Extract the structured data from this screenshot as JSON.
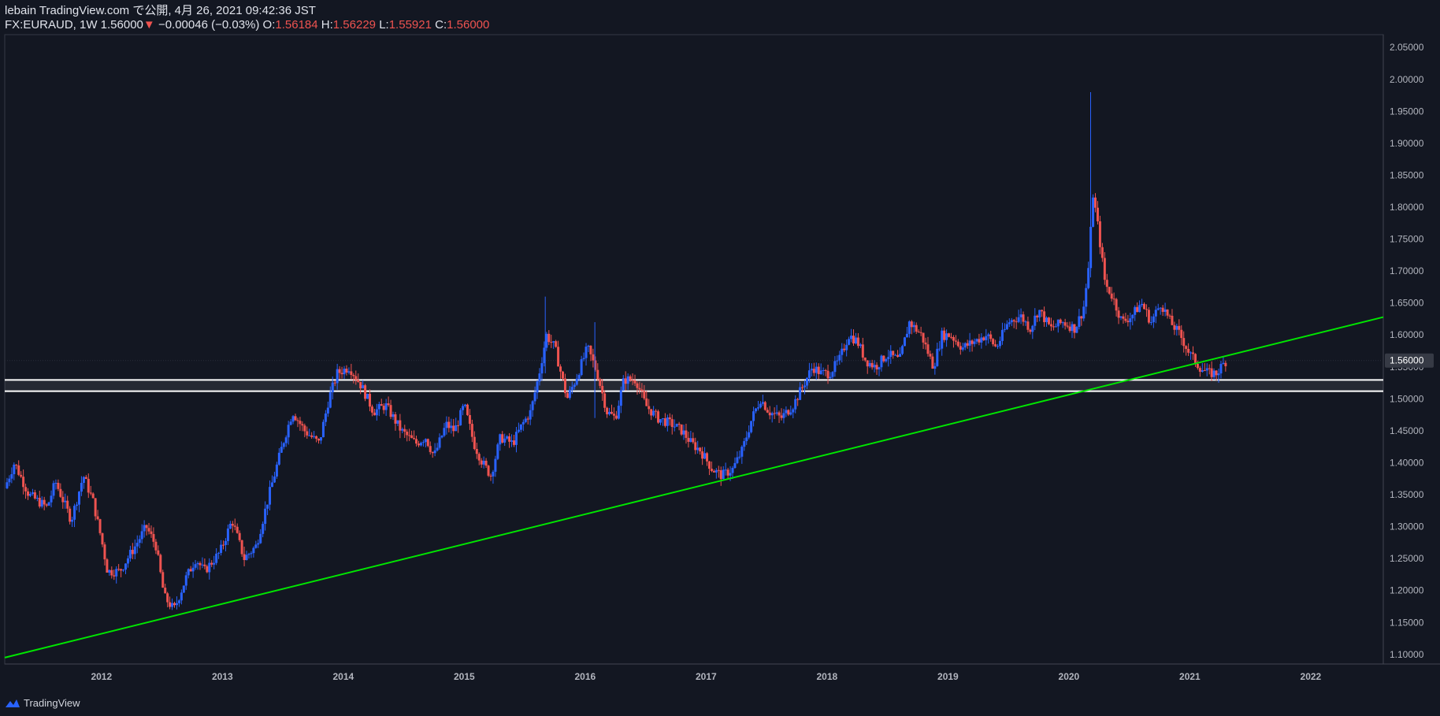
{
  "header": {
    "line1": "lebain TradingView.com で公開, 4月 26, 2021 09:42:36 JST",
    "symbol": "FX:EURAUD, 1W 1.56000",
    "change_arrow": "▼",
    "change": "−0.00046 (−0.03%)",
    "o_label": "O:",
    "o_value": "1.56184",
    "h_label": "H:",
    "h_value": "1.56229",
    "l_label": "L:",
    "l_value": "1.55921",
    "c_label": "C:",
    "c_value": "1.56000"
  },
  "footer": {
    "brand": "TradingView",
    "logo_icon": "tradingview-logo-icon"
  },
  "colors": {
    "background": "#131722",
    "up": "#2962ff",
    "down": "#ef5350",
    "trendline": "#00e600",
    "level": "#ffffff",
    "grid": "#363a45"
  },
  "chart_data": {
    "type": "candlestick",
    "symbol": "FX:EURAUD",
    "interval": "1W",
    "y_ticks": [
      "1.10000",
      "1.15000",
      "1.20000",
      "1.25000",
      "1.30000",
      "1.35000",
      "1.40000",
      "1.45000",
      "1.50000",
      "1.55000",
      "1.60000",
      "1.65000",
      "1.70000",
      "1.75000",
      "1.80000",
      "1.85000",
      "1.90000",
      "1.95000",
      "2.00000",
      "2.05000"
    ],
    "ylim": [
      1.085,
      2.07
    ],
    "x_ticks": [
      "2012",
      "2013",
      "2014",
      "2015",
      "2016",
      "2017",
      "2018",
      "2019",
      "2020",
      "2021",
      "2022"
    ],
    "xlim": [
      2011.2,
      2022.6
    ],
    "last_price_label": "1.56000",
    "last_price": 1.56,
    "horizontal_levels": [
      1.5295,
      1.512
    ],
    "trendline": {
      "from": [
        2011.2,
        1.095
      ],
      "to": [
        2022.6,
        1.628
      ]
    },
    "anchors": [
      [
        2011.2,
        1.36
      ],
      [
        2011.28,
        1.4
      ],
      [
        2011.4,
        1.35
      ],
      [
        2011.55,
        1.33
      ],
      [
        2011.62,
        1.37
      ],
      [
        2011.75,
        1.31
      ],
      [
        2011.85,
        1.38
      ],
      [
        2011.93,
        1.34
      ],
      [
        2012.0,
        1.28
      ],
      [
        2012.05,
        1.23
      ],
      [
        2012.15,
        1.23
      ],
      [
        2012.28,
        1.27
      ],
      [
        2012.37,
        1.3
      ],
      [
        2012.45,
        1.27
      ],
      [
        2012.52,
        1.19
      ],
      [
        2012.6,
        1.17
      ],
      [
        2012.7,
        1.22
      ],
      [
        2012.78,
        1.25
      ],
      [
        2012.85,
        1.23
      ],
      [
        2012.98,
        1.26
      ],
      [
        2013.08,
        1.31
      ],
      [
        2013.18,
        1.25
      ],
      [
        2013.28,
        1.27
      ],
      [
        2013.4,
        1.36
      ],
      [
        2013.5,
        1.43
      ],
      [
        2013.58,
        1.48
      ],
      [
        2013.68,
        1.45
      ],
      [
        2013.8,
        1.43
      ],
      [
        2013.88,
        1.5
      ],
      [
        2013.95,
        1.54
      ],
      [
        2014.05,
        1.55
      ],
      [
        2014.15,
        1.52
      ],
      [
        2014.25,
        1.48
      ],
      [
        2014.35,
        1.49
      ],
      [
        2014.48,
        1.45
      ],
      [
        2014.6,
        1.43
      ],
      [
        2014.68,
        1.44
      ],
      [
        2014.75,
        1.41
      ],
      [
        2014.85,
        1.46
      ],
      [
        2014.92,
        1.45
      ],
      [
        2015.0,
        1.49
      ],
      [
        2015.08,
        1.43
      ],
      [
        2015.15,
        1.4
      ],
      [
        2015.22,
        1.38
      ],
      [
        2015.3,
        1.44
      ],
      [
        2015.4,
        1.43
      ],
      [
        2015.48,
        1.46
      ],
      [
        2015.55,
        1.48
      ],
      [
        2015.62,
        1.54
      ],
      [
        2015.68,
        1.6
      ],
      [
        2015.75,
        1.58
      ],
      [
        2015.85,
        1.5
      ],
      [
        2015.92,
        1.53
      ],
      [
        2016.02,
        1.58
      ],
      [
        2016.1,
        1.54
      ],
      [
        2016.18,
        1.48
      ],
      [
        2016.25,
        1.47
      ],
      [
        2016.32,
        1.53
      ],
      [
        2016.42,
        1.53
      ],
      [
        2016.5,
        1.49
      ],
      [
        2016.6,
        1.47
      ],
      [
        2016.72,
        1.46
      ],
      [
        2016.8,
        1.45
      ],
      [
        2016.88,
        1.43
      ],
      [
        2016.95,
        1.42
      ],
      [
        2017.05,
        1.39
      ],
      [
        2017.13,
        1.38
      ],
      [
        2017.22,
        1.39
      ],
      [
        2017.3,
        1.42
      ],
      [
        2017.38,
        1.47
      ],
      [
        2017.45,
        1.5
      ],
      [
        2017.52,
        1.48
      ],
      [
        2017.62,
        1.47
      ],
      [
        2017.72,
        1.49
      ],
      [
        2017.8,
        1.52
      ],
      [
        2017.88,
        1.55
      ],
      [
        2017.95,
        1.54
      ],
      [
        2018.02,
        1.54
      ],
      [
        2018.1,
        1.56
      ],
      [
        2018.18,
        1.6
      ],
      [
        2018.25,
        1.59
      ],
      [
        2018.32,
        1.56
      ],
      [
        2018.4,
        1.55
      ],
      [
        2018.5,
        1.57
      ],
      [
        2018.6,
        1.56
      ],
      [
        2018.68,
        1.62
      ],
      [
        2018.78,
        1.6
      ],
      [
        2018.88,
        1.55
      ],
      [
        2018.95,
        1.6
      ],
      [
        2019.02,
        1.6
      ],
      [
        2019.12,
        1.58
      ],
      [
        2019.22,
        1.59
      ],
      [
        2019.32,
        1.6
      ],
      [
        2019.4,
        1.58
      ],
      [
        2019.5,
        1.62
      ],
      [
        2019.6,
        1.63
      ],
      [
        2019.68,
        1.61
      ],
      [
        2019.75,
        1.64
      ],
      [
        2019.85,
        1.61
      ],
      [
        2019.95,
        1.62
      ],
      [
        2020.05,
        1.61
      ],
      [
        2020.12,
        1.64
      ],
      [
        2020.16,
        1.7
      ],
      [
        2020.2,
        1.82
      ],
      [
        2020.24,
        1.77
      ],
      [
        2020.3,
        1.68
      ],
      [
        2020.36,
        1.66
      ],
      [
        2020.44,
        1.62
      ],
      [
        2020.52,
        1.63
      ],
      [
        2020.6,
        1.65
      ],
      [
        2020.68,
        1.62
      ],
      [
        2020.76,
        1.65
      ],
      [
        2020.84,
        1.62
      ],
      [
        2020.92,
        1.6
      ],
      [
        2021.0,
        1.57
      ],
      [
        2021.08,
        1.55
      ],
      [
        2021.15,
        1.54
      ],
      [
        2021.22,
        1.54
      ],
      [
        2021.3,
        1.56
      ]
    ],
    "spikes": [
      {
        "x": 2020.18,
        "high": 1.98,
        "low": 1.69
      },
      {
        "x": 2015.67,
        "high": 1.66,
        "low": 1.54
      },
      {
        "x": 2016.08,
        "high": 1.62,
        "low": 1.47
      }
    ]
  }
}
